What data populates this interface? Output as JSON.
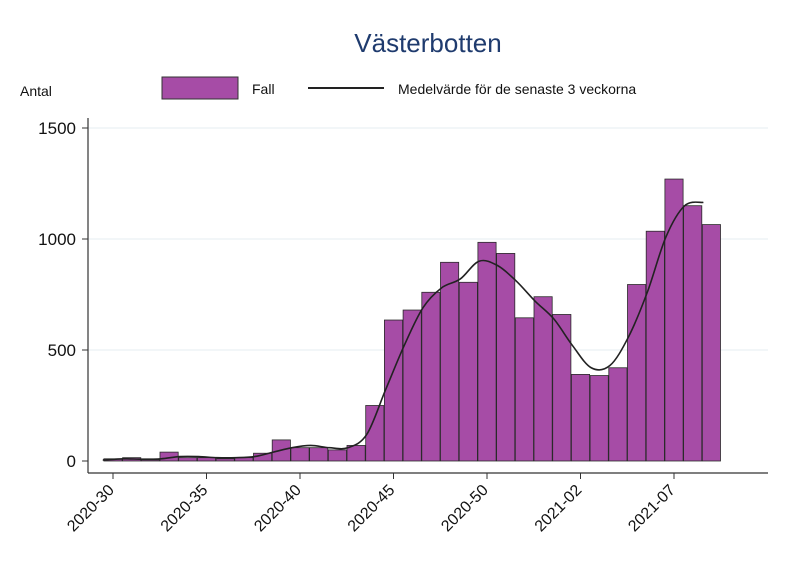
{
  "chart_data": {
    "type": "bar",
    "title": "Västerbotten",
    "ylabel": "Antal",
    "xlabel": "",
    "ylim": [
      0,
      1500
    ],
    "yticks": [
      0,
      500,
      1000,
      1500
    ],
    "grid": true,
    "legend_placement": "top",
    "categories": [
      "2020-30",
      "2020-31",
      "2020-32",
      "2020-33",
      "2020-34",
      "2020-35",
      "2020-36",
      "2020-37",
      "2020-38",
      "2020-39",
      "2020-40",
      "2020-41",
      "2020-42",
      "2020-43",
      "2020-44",
      "2020-45",
      "2020-46",
      "2020-47",
      "2020-48",
      "2020-49",
      "2020-50",
      "2020-51",
      "2020-52",
      "2020-53",
      "2021-01",
      "2021-02",
      "2021-03",
      "2021-04",
      "2021-05",
      "2021-06",
      "2021-07",
      "2021-08",
      "2021-09"
    ],
    "xtick_labels": [
      "2020-30",
      "2020-35",
      "2020-40",
      "2020-45",
      "2020-50",
      "2021-02",
      "2021-07"
    ],
    "series": [
      {
        "name": "Fall",
        "type": "bar",
        "color": "#a64ca6",
        "values": [
          10,
          15,
          5,
          40,
          15,
          15,
          10,
          15,
          35,
          95,
          60,
          60,
          50,
          70,
          250,
          635,
          680,
          760,
          895,
          805,
          985,
          935,
          645,
          740,
          660,
          390,
          385,
          420,
          795,
          1035,
          1270,
          1150,
          1065
        ]
      },
      {
        "name": "Medelvärde för de senaste 3 veckorna",
        "type": "line",
        "color": "#222222",
        "values": [
          5,
          10,
          8,
          10,
          20,
          20,
          15,
          15,
          20,
          40,
          60,
          70,
          60,
          60,
          120,
          320,
          520,
          690,
          780,
          820,
          900,
          880,
          810,
          720,
          640,
          520,
          420,
          430,
          560,
          760,
          1010,
          1150,
          1165
        ]
      }
    ]
  }
}
